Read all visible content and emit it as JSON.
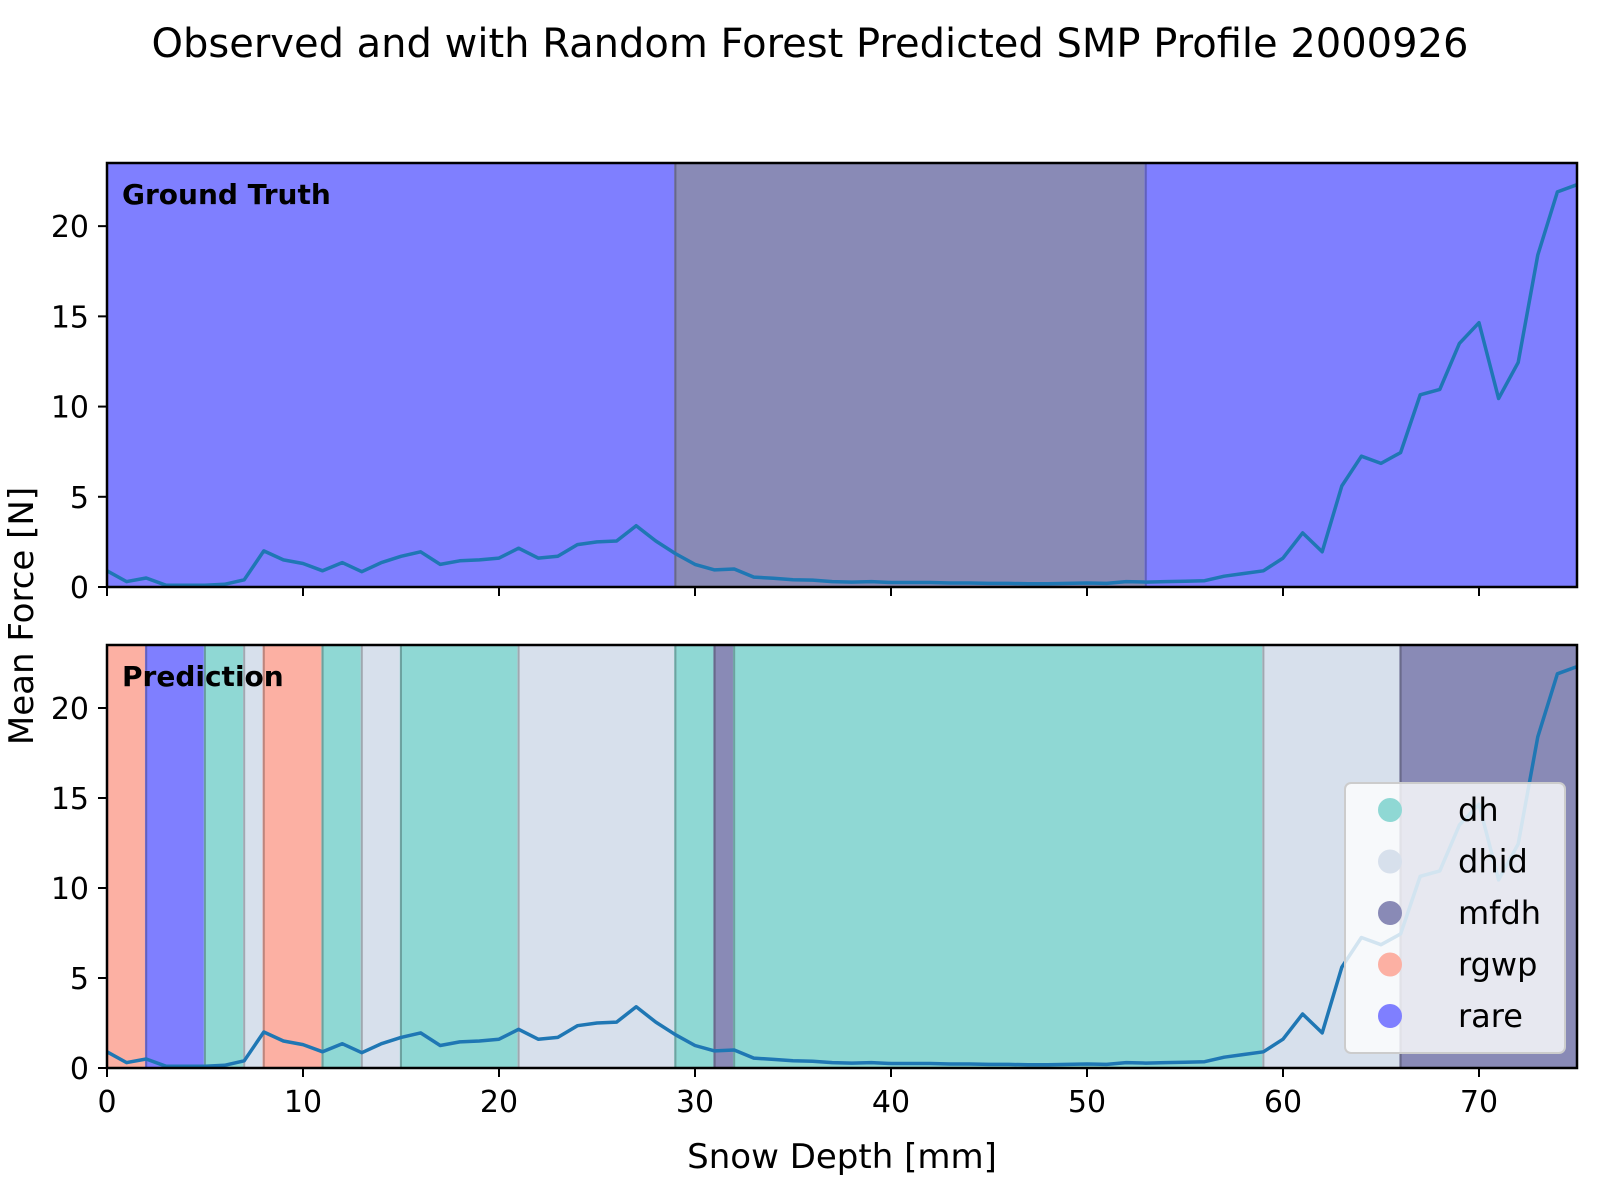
{
  "title": "Observed and with Random Forest Predicted SMP Profile 2000926",
  "chart_data": {
    "type": "line",
    "xlabel": "Snow Depth [mm]",
    "ylabel": "Mean Force [N]",
    "xlim": [
      0,
      75
    ],
    "ylim": [
      0,
      23.5
    ],
    "xticks": [
      0,
      10,
      20,
      30,
      40,
      50,
      60,
      70
    ],
    "yticks": [
      0,
      5,
      10,
      15,
      20
    ],
    "grid": false,
    "legend_position": "lower-right",
    "classes": [
      {
        "name": "dh",
        "color": "#8fd8d4"
      },
      {
        "name": "dhid",
        "color": "#d7e0ec"
      },
      {
        "name": "mfdh",
        "color": "#898ab6"
      },
      {
        "name": "rgwp",
        "color": "#fcb0a3"
      },
      {
        "name": "rare",
        "color": "#7f7fff"
      }
    ],
    "series": [
      {
        "x": [
          0,
          1,
          2,
          3,
          4,
          5,
          6,
          7,
          8,
          9,
          10,
          11,
          12,
          13,
          14,
          15,
          16,
          17,
          18,
          19,
          20,
          21,
          22,
          23,
          24,
          25,
          26,
          27,
          28,
          29,
          30,
          31,
          32,
          33,
          34,
          35,
          36,
          37,
          38,
          39,
          40,
          41,
          42,
          43,
          44,
          45,
          46,
          47,
          48,
          49,
          50,
          51,
          52,
          53,
          54,
          55,
          56,
          57,
          58,
          59,
          60,
          61,
          62,
          63,
          64,
          65,
          66,
          67,
          68,
          69,
          70,
          71,
          72,
          73,
          74,
          75
        ],
        "y": [
          0.9,
          0.3,
          0.5,
          0.1,
          0.1,
          0.1,
          0.15,
          0.4,
          2.0,
          1.5,
          1.3,
          0.9,
          1.35,
          0.85,
          1.35,
          1.7,
          1.95,
          1.25,
          1.45,
          1.5,
          1.6,
          2.15,
          1.6,
          1.7,
          2.35,
          2.5,
          2.55,
          3.4,
          2.55,
          1.85,
          1.25,
          0.95,
          1.0,
          0.55,
          0.48,
          0.4,
          0.38,
          0.3,
          0.27,
          0.3,
          0.25,
          0.25,
          0.25,
          0.22,
          0.22,
          0.2,
          0.2,
          0.18,
          0.18,
          0.2,
          0.22,
          0.2,
          0.3,
          0.27,
          0.3,
          0.32,
          0.35,
          0.6,
          0.75,
          0.9,
          1.6,
          3.0,
          1.95,
          5.6,
          7.25,
          6.85,
          7.45,
          10.65,
          10.95,
          13.5,
          14.65,
          10.45,
          12.45,
          18.4,
          21.9,
          22.3
        ]
      }
    ],
    "panels": [
      {
        "label": "Ground Truth",
        "segments": [
          {
            "from": 0,
            "to": 29,
            "class": "rare"
          },
          {
            "from": 29,
            "to": 53,
            "class": "mfdh"
          },
          {
            "from": 53,
            "to": 75,
            "class": "rare"
          }
        ]
      },
      {
        "label": "Prediction",
        "segments": [
          {
            "from": 0,
            "to": 2,
            "class": "rgwp"
          },
          {
            "from": 2,
            "to": 5,
            "class": "rare"
          },
          {
            "from": 5,
            "to": 7,
            "class": "dh"
          },
          {
            "from": 7,
            "to": 8,
            "class": "dhid"
          },
          {
            "from": 8,
            "to": 11,
            "class": "rgwp"
          },
          {
            "from": 11,
            "to": 13,
            "class": "dh"
          },
          {
            "from": 13,
            "to": 15,
            "class": "dhid"
          },
          {
            "from": 15,
            "to": 21,
            "class": "dh"
          },
          {
            "from": 21,
            "to": 29,
            "class": "dhid"
          },
          {
            "from": 29,
            "to": 31,
            "class": "dh"
          },
          {
            "from": 31,
            "to": 32,
            "class": "mfdh"
          },
          {
            "from": 32,
            "to": 59,
            "class": "dh"
          },
          {
            "from": 59,
            "to": 66,
            "class": "dhid"
          },
          {
            "from": 66,
            "to": 75,
            "class": "mfdh"
          }
        ]
      }
    ],
    "line_color": "#1f77b4"
  }
}
